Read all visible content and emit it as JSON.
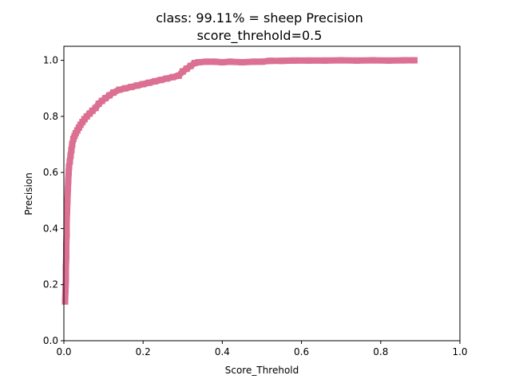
{
  "chart_data": {
    "type": "scatter",
    "title_line1": "class: 99.11% = sheep Precision",
    "title_line2": "score_threhold=0.5",
    "xlabel": "Score_Threhold",
    "ylabel": "Precision",
    "xlim": [
      0,
      1
    ],
    "ylim": [
      0,
      1.05
    ],
    "x_ticks": [
      "0.0",
      "0.2",
      "0.4",
      "0.6",
      "0.8",
      "1.0"
    ],
    "y_ticks": [
      "0.0",
      "0.2",
      "0.4",
      "0.6",
      "0.8",
      "1.0"
    ],
    "grid": false,
    "marker_color": "#db7093",
    "series": [
      {
        "x": [
          0.003,
          0.004,
          0.005,
          0.005,
          0.006,
          0.006,
          0.007,
          0.007,
          0.008,
          0.009,
          0.01,
          0.011,
          0.012,
          0.013,
          0.015,
          0.017,
          0.019,
          0.021,
          0.024,
          0.027,
          0.03,
          0.034,
          0.038,
          0.042,
          0.047,
          0.052,
          0.058,
          0.065,
          0.072,
          0.08,
          0.088,
          0.096,
          0.105,
          0.115,
          0.125,
          0.14,
          0.155,
          0.17,
          0.185,
          0.2,
          0.215,
          0.23,
          0.245,
          0.26,
          0.275,
          0.29,
          0.3,
          0.31,
          0.32,
          0.33,
          0.34,
          0.36,
          0.38,
          0.4,
          0.42,
          0.45,
          0.48,
          0.5,
          0.52,
          0.55,
          0.58,
          0.62,
          0.66,
          0.7,
          0.74,
          0.78,
          0.82,
          0.86,
          0.885
        ],
        "y": [
          0.14,
          0.18,
          0.22,
          0.26,
          0.3,
          0.34,
          0.38,
          0.42,
          0.46,
          0.5,
          0.54,
          0.57,
          0.6,
          0.62,
          0.64,
          0.66,
          0.68,
          0.7,
          0.72,
          0.73,
          0.74,
          0.75,
          0.76,
          0.77,
          0.78,
          0.79,
          0.8,
          0.81,
          0.82,
          0.83,
          0.845,
          0.855,
          0.865,
          0.875,
          0.885,
          0.895,
          0.9,
          0.905,
          0.91,
          0.915,
          0.92,
          0.925,
          0.93,
          0.935,
          0.94,
          0.945,
          0.96,
          0.97,
          0.98,
          0.99,
          0.993,
          0.995,
          0.995,
          0.993,
          0.995,
          0.993,
          0.995,
          0.995,
          0.998,
          0.998,
          0.999,
          0.999,
          0.999,
          1.0,
          0.999,
          1.0,
          0.999,
          1.0,
          1.0
        ]
      }
    ]
  }
}
